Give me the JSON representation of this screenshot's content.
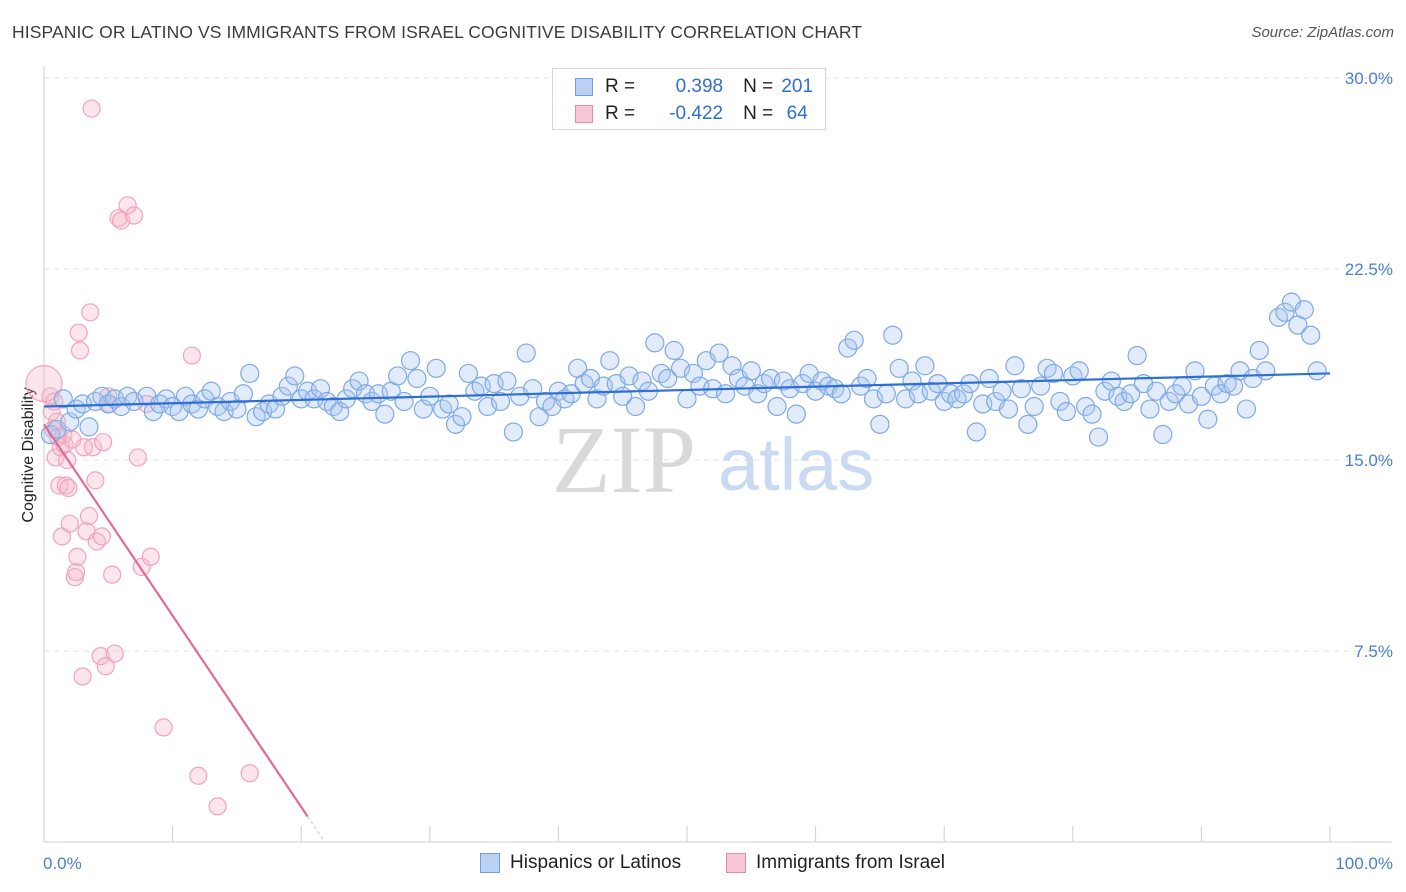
{
  "header": {
    "title": "HISPANIC OR LATINO VS IMMIGRANTS FROM ISRAEL COGNITIVE DISABILITY CORRELATION CHART",
    "source": "Source: ZipAtlas.com"
  },
  "watermark": {
    "zip": "ZIP",
    "atlas": "atlas"
  },
  "legend": {
    "rows": [
      {
        "r_label": "R =",
        "r_value": "0.398",
        "n_label": "N =",
        "n_value": "201",
        "color": "#a9c6ef",
        "border": "#6f9fdf"
      },
      {
        "r_label": "R =",
        "r_value": "-0.422",
        "n_label": "N =",
        "n_value": "64",
        "color": "#f7b6c9",
        "border": "#e98aa8"
      }
    ]
  },
  "bottom_legend": [
    {
      "label": "Hispanics or Latinos",
      "color": "#a9c6ef",
      "border": "#6f9fdf"
    },
    {
      "label": "Immigrants from Israel",
      "color": "#f7b6c9",
      "border": "#e98aa8"
    }
  ],
  "chart_data": {
    "type": "scatter",
    "title": "HISPANIC OR LATINO VS IMMIGRANTS FROM ISRAEL COGNITIVE DISABILITY CORRELATION CHART",
    "ylabel": "Cognitive Disability",
    "xlabel": "",
    "xlim": [
      0,
      100
    ],
    "ylim": [
      0,
      30
    ],
    "x_tick_labels": [
      "0.0%",
      "100.0%"
    ],
    "y_ticks": [
      7.5,
      15.0,
      22.5,
      30.0
    ],
    "y_tick_labels": [
      "7.5%",
      "15.0%",
      "22.5%",
      "30.0%"
    ],
    "grid": "horizontal dashed",
    "legend_position": "top-center",
    "series": [
      {
        "name": "Hispanics or Latinos",
        "color": "#7ea9e8",
        "line_color": "#2e6fd6",
        "trend": {
          "x": [
            0,
            100
          ],
          "y": [
            17.1,
            18.4
          ]
        },
        "points": [
          [
            0.5,
            16.0
          ],
          [
            1.0,
            16.2
          ],
          [
            1.5,
            17.4
          ],
          [
            2.0,
            16.5
          ],
          [
            2.5,
            17.0
          ],
          [
            3.0,
            17.2
          ],
          [
            3.5,
            16.3
          ],
          [
            4.0,
            17.3
          ],
          [
            4.5,
            17.5
          ],
          [
            5.0,
            17.2
          ],
          [
            5.5,
            17.4
          ],
          [
            6.0,
            17.1
          ],
          [
            6.5,
            17.5
          ],
          [
            7.0,
            17.3
          ],
          [
            8.0,
            17.5
          ],
          [
            8.5,
            16.9
          ],
          [
            9.0,
            17.2
          ],
          [
            9.5,
            17.4
          ],
          [
            10.0,
            17.1
          ],
          [
            10.5,
            16.9
          ],
          [
            11.0,
            17.5
          ],
          [
            11.5,
            17.2
          ],
          [
            12.0,
            17.0
          ],
          [
            12.5,
            17.4
          ],
          [
            13.0,
            17.7
          ],
          [
            13.5,
            17.1
          ],
          [
            14.0,
            16.9
          ],
          [
            14.5,
            17.3
          ],
          [
            15.0,
            17.0
          ],
          [
            15.5,
            17.6
          ],
          [
            16.0,
            18.4
          ],
          [
            16.5,
            16.7
          ],
          [
            17.0,
            16.9
          ],
          [
            17.5,
            17.2
          ],
          [
            18.0,
            17.0
          ],
          [
            18.5,
            17.5
          ],
          [
            19.0,
            17.9
          ],
          [
            19.5,
            18.3
          ],
          [
            20.0,
            17.4
          ],
          [
            20.5,
            17.7
          ],
          [
            21.0,
            17.4
          ],
          [
            21.5,
            17.8
          ],
          [
            22.0,
            17.3
          ],
          [
            22.5,
            17.1
          ],
          [
            23.0,
            16.9
          ],
          [
            23.5,
            17.4
          ],
          [
            24.0,
            17.8
          ],
          [
            24.5,
            18.1
          ],
          [
            25.0,
            17.6
          ],
          [
            25.5,
            17.3
          ],
          [
            26.0,
            17.6
          ],
          [
            26.5,
            16.8
          ],
          [
            27.0,
            17.7
          ],
          [
            27.5,
            18.3
          ],
          [
            28.0,
            17.3
          ],
          [
            28.5,
            18.9
          ],
          [
            29.0,
            18.2
          ],
          [
            29.5,
            17.0
          ],
          [
            30.0,
            17.5
          ],
          [
            30.5,
            18.6
          ],
          [
            31.0,
            17.0
          ],
          [
            31.5,
            17.2
          ],
          [
            32.0,
            16.4
          ],
          [
            32.5,
            16.7
          ],
          [
            33.0,
            18.4
          ],
          [
            33.5,
            17.7
          ],
          [
            34.0,
            17.9
          ],
          [
            34.5,
            17.1
          ],
          [
            35.0,
            18.0
          ],
          [
            35.5,
            17.3
          ],
          [
            36.0,
            18.1
          ],
          [
            36.5,
            16.1
          ],
          [
            37.0,
            17.5
          ],
          [
            37.5,
            19.2
          ],
          [
            38.0,
            17.8
          ],
          [
            38.5,
            16.7
          ],
          [
            39.0,
            17.3
          ],
          [
            39.5,
            17.1
          ],
          [
            40.0,
            17.7
          ],
          [
            40.5,
            17.4
          ],
          [
            41.0,
            17.6
          ],
          [
            41.5,
            18.6
          ],
          [
            42.0,
            18.0
          ],
          [
            42.5,
            18.2
          ],
          [
            43.0,
            17.4
          ],
          [
            43.5,
            17.9
          ],
          [
            44.0,
            18.9
          ],
          [
            44.5,
            18.0
          ],
          [
            45.0,
            17.5
          ],
          [
            45.5,
            18.3
          ],
          [
            46.0,
            17.1
          ],
          [
            46.5,
            18.1
          ],
          [
            47.0,
            17.7
          ],
          [
            47.5,
            19.6
          ],
          [
            48.0,
            18.4
          ],
          [
            48.5,
            18.2
          ],
          [
            49.0,
            19.3
          ],
          [
            49.5,
            18.6
          ],
          [
            50.0,
            17.4
          ],
          [
            50.5,
            18.4
          ],
          [
            51.0,
            17.9
          ],
          [
            51.5,
            18.9
          ],
          [
            52.0,
            17.8
          ],
          [
            52.5,
            19.2
          ],
          [
            53.0,
            17.6
          ],
          [
            53.5,
            18.7
          ],
          [
            54.0,
            18.2
          ],
          [
            54.5,
            17.9
          ],
          [
            55.0,
            18.5
          ],
          [
            55.5,
            17.6
          ],
          [
            56.0,
            18.0
          ],
          [
            56.5,
            18.2
          ],
          [
            57.0,
            17.1
          ],
          [
            57.5,
            18.1
          ],
          [
            58.0,
            17.8
          ],
          [
            58.5,
            16.8
          ],
          [
            59.0,
            18.0
          ],
          [
            59.5,
            18.4
          ],
          [
            60.0,
            17.7
          ],
          [
            60.5,
            18.1
          ],
          [
            61.0,
            17.9
          ],
          [
            61.5,
            17.8
          ],
          [
            62.0,
            17.6
          ],
          [
            62.5,
            19.4
          ],
          [
            63.0,
            19.7
          ],
          [
            63.5,
            17.9
          ],
          [
            64.0,
            18.2
          ],
          [
            64.5,
            17.4
          ],
          [
            65.0,
            16.4
          ],
          [
            65.5,
            17.6
          ],
          [
            66.0,
            19.9
          ],
          [
            66.5,
            18.6
          ],
          [
            67.0,
            17.4
          ],
          [
            67.5,
            18.1
          ],
          [
            68.0,
            17.6
          ],
          [
            68.5,
            18.7
          ],
          [
            69.0,
            17.7
          ],
          [
            69.5,
            18.0
          ],
          [
            70.0,
            17.3
          ],
          [
            70.5,
            17.6
          ],
          [
            71.0,
            17.4
          ],
          [
            71.5,
            17.6
          ],
          [
            72.0,
            18.0
          ],
          [
            72.5,
            16.1
          ],
          [
            73.0,
            17.2
          ],
          [
            73.5,
            18.2
          ],
          [
            74.0,
            17.3
          ],
          [
            74.5,
            17.7
          ],
          [
            75.0,
            17.0
          ],
          [
            75.5,
            18.7
          ],
          [
            76.0,
            17.8
          ],
          [
            76.5,
            16.4
          ],
          [
            77.0,
            17.1
          ],
          [
            77.5,
            17.9
          ],
          [
            78.0,
            18.6
          ],
          [
            78.5,
            18.4
          ],
          [
            79.0,
            17.3
          ],
          [
            79.5,
            16.9
          ],
          [
            80.0,
            18.3
          ],
          [
            80.5,
            18.5
          ],
          [
            81.0,
            17.1
          ],
          [
            81.5,
            16.8
          ],
          [
            82.0,
            15.9
          ],
          [
            82.5,
            17.7
          ],
          [
            83.0,
            18.1
          ],
          [
            83.5,
            17.5
          ],
          [
            84.0,
            17.3
          ],
          [
            84.5,
            17.6
          ],
          [
            85.0,
            19.1
          ],
          [
            85.5,
            18.0
          ],
          [
            86.0,
            17.0
          ],
          [
            86.5,
            17.7
          ],
          [
            87.0,
            16.0
          ],
          [
            87.5,
            17.3
          ],
          [
            88.0,
            17.6
          ],
          [
            88.5,
            17.9
          ],
          [
            89.0,
            17.2
          ],
          [
            89.5,
            18.5
          ],
          [
            90.0,
            17.5
          ],
          [
            90.5,
            16.6
          ],
          [
            91.0,
            17.9
          ],
          [
            91.5,
            17.6
          ],
          [
            92.0,
            18.0
          ],
          [
            92.5,
            17.9
          ],
          [
            93.0,
            18.5
          ],
          [
            93.5,
            17.0
          ],
          [
            94.0,
            18.2
          ],
          [
            94.5,
            19.3
          ],
          [
            95.0,
            18.5
          ],
          [
            96.0,
            20.6
          ],
          [
            96.5,
            20.8
          ],
          [
            97.0,
            21.2
          ],
          [
            97.5,
            20.3
          ],
          [
            98.0,
            20.9
          ],
          [
            98.5,
            19.9
          ],
          [
            99.0,
            18.5
          ]
        ]
      },
      {
        "name": "Immigrants from Israel",
        "color": "#f2a3bd",
        "line_color": "#e06a98",
        "trend": {
          "x": [
            0,
            20.5
          ],
          "y": [
            16.4,
            1.0
          ]
        },
        "points": [
          [
            0.5,
            17.5
          ],
          [
            0.6,
            16.9
          ],
          [
            0.7,
            16.2
          ],
          [
            0.8,
            17.3
          ],
          [
            0.9,
            15.1
          ],
          [
            1.0,
            16.5
          ],
          [
            1.1,
            15.9
          ],
          [
            1.2,
            14.0
          ],
          [
            1.3,
            15.5
          ],
          [
            1.4,
            12.0
          ],
          [
            1.5,
            16.0
          ],
          [
            1.6,
            15.6
          ],
          [
            1.7,
            14.0
          ],
          [
            1.8,
            15.0
          ],
          [
            1.9,
            13.9
          ],
          [
            2.0,
            12.5
          ],
          [
            2.2,
            15.8
          ],
          [
            2.4,
            10.4
          ],
          [
            2.5,
            10.6
          ],
          [
            2.6,
            11.2
          ],
          [
            2.7,
            20.0
          ],
          [
            2.8,
            19.3
          ],
          [
            3.0,
            6.5
          ],
          [
            3.1,
            15.5
          ],
          [
            3.3,
            12.2
          ],
          [
            3.5,
            12.8
          ],
          [
            3.6,
            20.8
          ],
          [
            3.7,
            28.8
          ],
          [
            3.8,
            15.5
          ],
          [
            4.0,
            14.2
          ],
          [
            4.1,
            11.8
          ],
          [
            4.4,
            7.3
          ],
          [
            4.5,
            12.0
          ],
          [
            4.6,
            15.7
          ],
          [
            4.8,
            6.9
          ],
          [
            5.0,
            17.5
          ],
          [
            5.1,
            17.2
          ],
          [
            5.3,
            10.5
          ],
          [
            5.5,
            7.4
          ],
          [
            5.8,
            24.5
          ],
          [
            6.0,
            24.4
          ],
          [
            6.5,
            25.0
          ],
          [
            7.0,
            24.6
          ],
          [
            7.3,
            15.1
          ],
          [
            7.6,
            10.8
          ],
          [
            8.0,
            17.2
          ],
          [
            8.3,
            11.2
          ],
          [
            9.3,
            4.5
          ],
          [
            11.5,
            19.1
          ],
          [
            12.0,
            2.6
          ],
          [
            13.5,
            1.4
          ],
          [
            16.0,
            2.7
          ]
        ]
      }
    ]
  }
}
